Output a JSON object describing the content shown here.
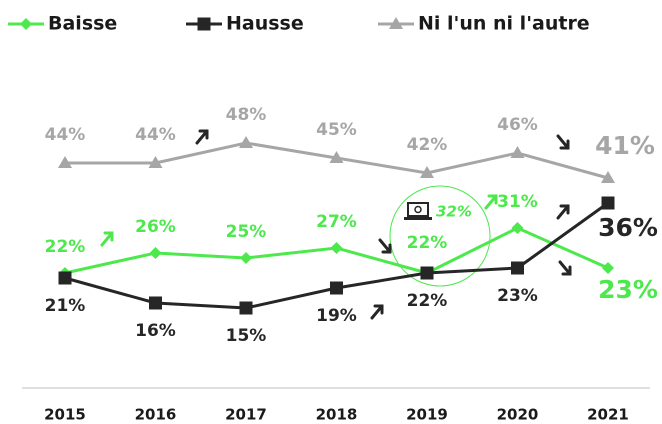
{
  "chart_data": {
    "type": "line",
    "categories": [
      "2015",
      "2016",
      "2017",
      "2018",
      "2019",
      "2020",
      "2021"
    ],
    "series": [
      {
        "name": "Baisse",
        "color": "#4ce84c",
        "marker": "diamond",
        "values": [
          22,
          26,
          25,
          27,
          22,
          31,
          23
        ],
        "value_labels": [
          "22%",
          "26%",
          "25%",
          "27%",
          "22%",
          "31%",
          "23%"
        ]
      },
      {
        "name": "Hausse",
        "color": "#262626",
        "marker": "square",
        "values": [
          21,
          16,
          15,
          19,
          22,
          23,
          36
        ],
        "value_labels": [
          "21%",
          "16%",
          "15%",
          "19%",
          "22%",
          "23%",
          "36%"
        ]
      },
      {
        "name": "Ni l'un ni l'autre",
        "color": "#a6a6a6",
        "marker": "triangle",
        "values": [
          44,
          44,
          48,
          45,
          42,
          46,
          41
        ],
        "value_labels": [
          "44%",
          "44%",
          "48%",
          "45%",
          "42%",
          "46%",
          "41%"
        ]
      }
    ],
    "annotations": [
      "32%"
    ]
  }
}
